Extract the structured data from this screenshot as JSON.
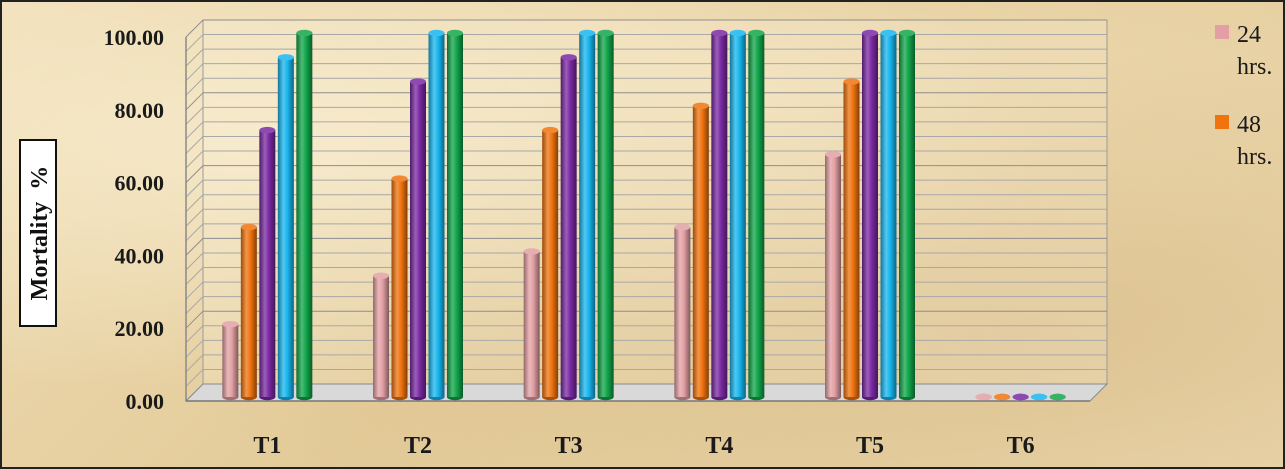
{
  "chart_data": {
    "type": "bar",
    "title": "",
    "xlabel": "",
    "ylabel": "Mortality  %",
    "ylim": [
      0,
      100
    ],
    "yticks": [
      "0.00",
      "20.00",
      "40.00",
      "60.00",
      "80.00",
      "100.00"
    ],
    "grid": true,
    "legend_position": "right",
    "categories": [
      "T1",
      "T2",
      "T3",
      "T4",
      "T5",
      "T6"
    ],
    "series": [
      {
        "name": "24 hrs.",
        "color": "#e3a0a4",
        "values": [
          20.0,
          33.33,
          40.0,
          46.67,
          66.67,
          0
        ]
      },
      {
        "name": "48 hrs.",
        "color": "#f0730e",
        "values": [
          46.67,
          60.0,
          73.33,
          80.0,
          86.67,
          0
        ]
      },
      {
        "color": "#7a2aa3",
        "values": [
          73.33,
          86.67,
          93.33,
          100.0,
          100.0,
          0
        ]
      },
      {
        "color": "#18b6ee",
        "values": [
          93.33,
          100.0,
          100.0,
          100.0,
          100.0,
          0
        ]
      },
      {
        "color": "#12a64a",
        "values": [
          100.0,
          100.0,
          100.0,
          100.0,
          100.0,
          0
        ]
      }
    ],
    "legend": [
      {
        "line1": "24",
        "line2": "hrs."
      },
      {
        "line1": "48",
        "line2": "hrs."
      }
    ]
  }
}
